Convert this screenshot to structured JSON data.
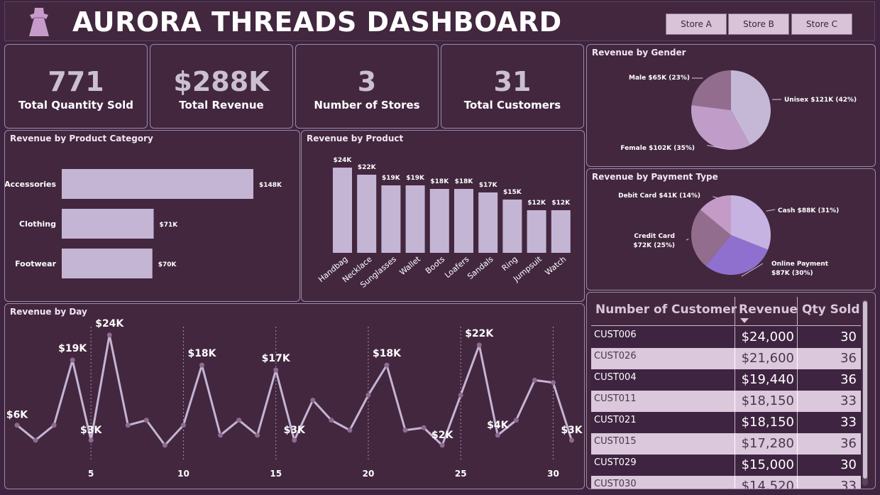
{
  "header": {
    "title": "AURORA THREADS DASHBOARD",
    "stores": [
      "Store A",
      "Store B",
      "Store C"
    ]
  },
  "kpis": [
    {
      "value": "771",
      "label": "Total Quantity Sold"
    },
    {
      "value": "$288K",
      "label": "Total Revenue"
    },
    {
      "value": "3",
      "label": "Number of Stores"
    },
    {
      "value": "31",
      "label": "Total Customers"
    }
  ],
  "colors": {
    "background": "#3e2440",
    "bar": "#c5b5d4",
    "line": "#c5b5d4",
    "point": "#8e6a8e"
  },
  "chart_data": [
    {
      "id": "category",
      "type": "bar",
      "orientation": "horizontal",
      "title": "Revenue by Product Category",
      "categories": [
        "Accessories",
        "Clothing",
        "Footwear"
      ],
      "values": [
        148,
        71,
        70
      ],
      "labels": [
        "$148K",
        "$71K",
        "$70K"
      ]
    },
    {
      "id": "product",
      "type": "bar",
      "title": "Revenue by Product",
      "categories": [
        "Handbag",
        "Necklace",
        "Sunglasses",
        "Wallet",
        "Boots",
        "Loafers",
        "Sandals",
        "Ring",
        "Jumpsuit",
        "Watch"
      ],
      "values": [
        24,
        22,
        19,
        19,
        18,
        18,
        17,
        15,
        12,
        12
      ],
      "labels": [
        "$24K",
        "$22K",
        "$19K",
        "$19K",
        "$18K",
        "$18K",
        "$17K",
        "$15K",
        "$12K",
        "$12K"
      ]
    },
    {
      "id": "gender",
      "type": "pie",
      "title": "Revenue by Gender",
      "slices": [
        {
          "label": "Unisex $121K (42%)",
          "value": 42,
          "color": "#c5b8d6"
        },
        {
          "label": "Female $102K (35%)",
          "value": 35,
          "color": "#c09cc8"
        },
        {
          "label": "Male $65K (23%)",
          "value": 23,
          "color": "#936d8e"
        }
      ]
    },
    {
      "id": "payment",
      "type": "pie",
      "title": "Revenue by Payment Type",
      "slices": [
        {
          "label": "Cash $88K (31%)",
          "value": 31,
          "color": "#c7b3e2"
        },
        {
          "label": "Online Payment $87K (30%)",
          "value": 30,
          "color": "#9070ce"
        },
        {
          "label": "Credit Card $72K (25%)",
          "value": 25,
          "color": "#936d8e"
        },
        {
          "label": "Debit Card $41K (14%)",
          "value": 14,
          "color": "#c49ac6"
        }
      ]
    },
    {
      "id": "day",
      "type": "line",
      "title": "Revenue by Day",
      "x": [
        1,
        2,
        3,
        4,
        5,
        6,
        7,
        8,
        9,
        10,
        11,
        12,
        13,
        14,
        15,
        16,
        17,
        18,
        19,
        20,
        21,
        22,
        23,
        24,
        25,
        26,
        27,
        28,
        29,
        30,
        31
      ],
      "y": [
        6,
        3,
        6,
        19,
        3,
        24,
        6,
        7,
        2,
        6,
        18,
        4,
        7,
        4,
        17,
        3,
        11,
        7,
        5,
        12,
        18,
        5,
        5.5,
        2,
        12,
        22,
        4,
        7,
        15,
        14.5,
        3
      ],
      "xticks": [
        5,
        10,
        15,
        20,
        25,
        30
      ],
      "point_labels": [
        {
          "x": 1,
          "text": "$6K"
        },
        {
          "x": 4,
          "text": "$19K"
        },
        {
          "x": 5,
          "text": "$3K"
        },
        {
          "x": 6,
          "text": "$24K"
        },
        {
          "x": 11,
          "text": "$18K"
        },
        {
          "x": 15,
          "text": "$17K"
        },
        {
          "x": 16,
          "text": "$3K"
        },
        {
          "x": 21,
          "text": "$18K"
        },
        {
          "x": 24,
          "text": "$2K"
        },
        {
          "x": 26,
          "text": "$22K"
        },
        {
          "x": 27,
          "text": "$4K"
        },
        {
          "x": 31,
          "text": "$3K"
        }
      ]
    }
  ],
  "customer_table": {
    "columns": [
      "Number of Customer",
      "Revenue",
      "Qty Sold"
    ],
    "rows": [
      {
        "customer": "CUST006",
        "revenue": "$24,000",
        "qty": "30"
      },
      {
        "customer": "CUST026",
        "revenue": "$21,600",
        "qty": "36"
      },
      {
        "customer": "CUST004",
        "revenue": "$19,440",
        "qty": "36"
      },
      {
        "customer": "CUST011",
        "revenue": "$18,150",
        "qty": "33"
      },
      {
        "customer": "CUST021",
        "revenue": "$18,150",
        "qty": "33"
      },
      {
        "customer": "CUST015",
        "revenue": "$17,280",
        "qty": "36"
      },
      {
        "customer": "CUST029",
        "revenue": "$15,000",
        "qty": "30"
      },
      {
        "customer": "CUST030",
        "revenue": "$14,520",
        "qty": "33"
      }
    ]
  }
}
